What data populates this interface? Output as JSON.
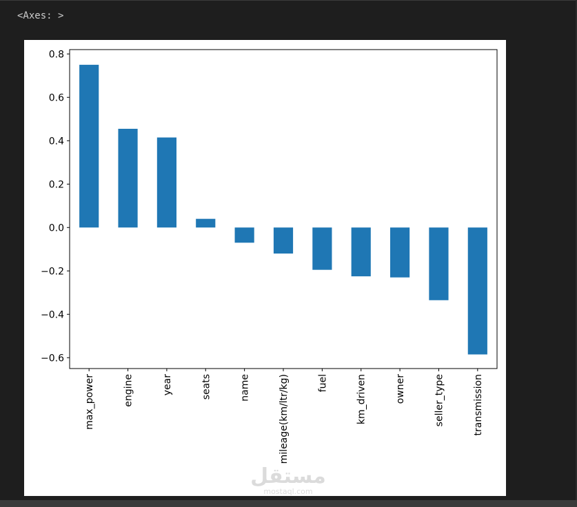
{
  "output": {
    "label": "<Axes: >"
  },
  "chart_data": {
    "type": "bar",
    "categories": [
      "max_power",
      "engine",
      "year",
      "seats",
      "name",
      "mileage(km/ltr/kg)",
      "fuel",
      "km_driven",
      "owner",
      "seller_type",
      "transmission"
    ],
    "values": [
      0.75,
      0.455,
      0.415,
      0.04,
      -0.07,
      -0.12,
      -0.195,
      -0.225,
      -0.23,
      -0.335,
      -0.585
    ],
    "ylim": [
      -0.65,
      0.82
    ],
    "yticks": [
      -0.6,
      -0.4,
      -0.2,
      0.0,
      0.2,
      0.4,
      0.6,
      0.8
    ],
    "ytick_labels": [
      "−0.6",
      "−0.4",
      "−0.2",
      "0.0",
      "0.2",
      "0.4",
      "0.6",
      "0.8"
    ],
    "bar_color": "#1f77b4",
    "title": "",
    "xlabel": "",
    "ylabel": "",
    "grid": false
  },
  "watermark": {
    "brand": "مستقل",
    "site": "mostaql.com"
  }
}
